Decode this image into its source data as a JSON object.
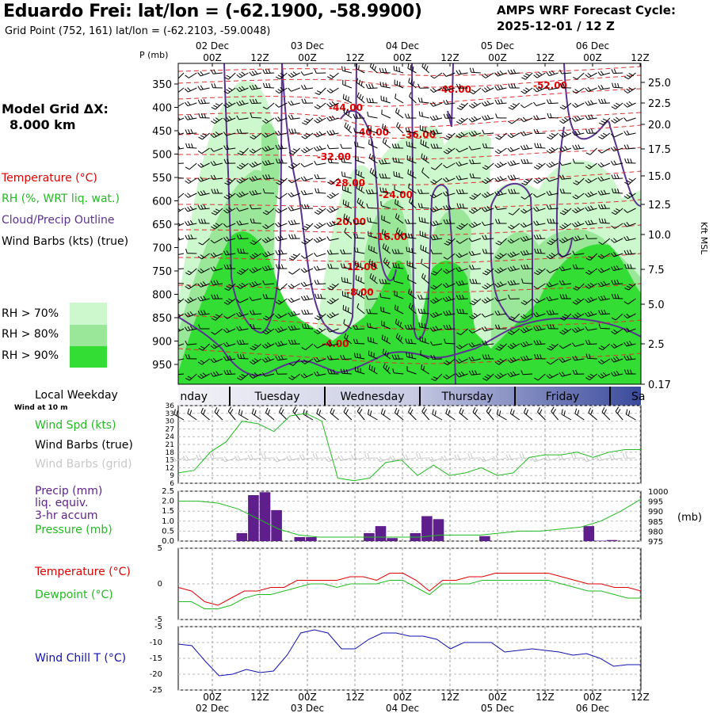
{
  "header": {
    "station_title": "Eduardo Frei:  lat/lon = (-62.1900, -58.9900)",
    "grid_point": "Grid Point (752, 161) lat/lon = (-62.2103, -59.0048)",
    "cycle_line1": "AMPS WRF Forecast Cycle:",
    "cycle_line2": "2025-12-01 / 12  Z"
  },
  "left_panel": {
    "model_grid_title": "Model Grid ΔX:",
    "model_grid_value": "8.000 km",
    "legend_temperature": "Temperature (°C)",
    "legend_rh": "RH (%, WRT liq. wat.)",
    "legend_cloud": "Cloud/Precip Outline",
    "legend_wind": "Wind Barbs (kts) (true)",
    "rh70": "RH > 70%",
    "rh80": "RH > 80%",
    "rh90": "RH > 90%",
    "local_weekday": "Local Weekday",
    "wind_at_10m": "Wind at 10 m",
    "wind_spd": "Wind Spd (kts)",
    "wind_barbs_true": "Wind Barbs (true)",
    "wind_barbs_grid": "Wind Barbs (grid)",
    "precip_1": "Precip (mm)",
    "precip_2": "liq. equiv.",
    "precip_3": "3-hr accum",
    "pressure": "Pressure (mb)",
    "temperature": "Temperature (°C)",
    "dewpoint": "Dewpoint (°C)",
    "wind_chill": "Wind Chill T (°C)"
  },
  "colors": {
    "rh70": "#cdf7cd",
    "rh80": "#9ae79a",
    "rh90": "#33dd33",
    "temp": "#e00000",
    "cloud": "#5b3291",
    "dew": "#22bb22",
    "chill": "#1010b0",
    "precip": "#5e1f8c"
  },
  "chart_data": [
    {
      "type": "heatmap",
      "title": "Time-height cross section",
      "pressure_label": "P (mb)",
      "height_label": "Kft MSL",
      "time_top_labels": [
        "00Z",
        "12Z",
        "00Z",
        "12Z",
        "00Z",
        "12Z",
        "00Z",
        "12Z",
        "00Z",
        "12Z"
      ],
      "date_labels": [
        "02 Dec",
        "03 Dec",
        "04 Dec",
        "05 Dec",
        "06 Dec"
      ],
      "pressure_ticks": [
        "350",
        "400",
        "450",
        "500",
        "550",
        "600",
        "650",
        "700",
        "750",
        "800",
        "850",
        "900",
        "950"
      ],
      "height_ticks": [
        "25.0",
        "22.5",
        "20.0",
        "17.5",
        "15.0",
        "12.5",
        "10.0",
        "7.5",
        "5.0",
        "2.5",
        "0.17"
      ],
      "temp_contour_labels": [
        "-48.00",
        "-52.00",
        "-44.00",
        "-40.00",
        "-36.00",
        "-32.00",
        "-28.00",
        "-24.00",
        "-20.00",
        "-16.00",
        "-12.00",
        "-8.00",
        "-4.00"
      ]
    },
    {
      "type": "table",
      "title": "Local Weekday",
      "days": [
        "nday",
        "Tuesday",
        "Wednesday",
        "Thursday",
        "Friday",
        "Sa"
      ]
    },
    {
      "type": "line",
      "title": "Wind Spd (kts)",
      "y_ticks": [
        "36",
        "33",
        "30",
        "27",
        "24",
        "21",
        "18",
        "15",
        "12",
        "9",
        "6"
      ],
      "ylim": [
        6,
        36
      ],
      "x": [
        0,
        1,
        2,
        3,
        4,
        5,
        6,
        7,
        8,
        9,
        10,
        11,
        12,
        13,
        14,
        15,
        16,
        17,
        18,
        19,
        20,
        21,
        22,
        23,
        24,
        25,
        26,
        27,
        28,
        29
      ],
      "values": [
        10,
        11,
        18,
        22,
        30,
        29,
        26,
        32,
        33,
        30,
        8,
        7,
        8,
        14,
        15,
        9,
        13,
        9,
        10,
        12,
        9,
        10,
        16,
        17,
        17,
        18,
        16,
        18,
        19,
        19
      ]
    },
    {
      "type": "bar",
      "title": "Precip (mm) 3-hr accum",
      "y_ticks": [
        "2.5",
        "2.0",
        "1.5",
        "1.0",
        "0.5",
        "0.0"
      ],
      "ylim": [
        0,
        2.5
      ],
      "values": [
        0,
        0,
        0,
        0,
        0.02,
        0.4,
        2.3,
        2.45,
        1.55,
        0,
        0.2,
        0.2,
        0,
        0,
        0,
        0,
        0.4,
        0.75,
        0.15,
        0,
        0.4,
        1.25,
        1.1,
        0,
        0,
        0,
        0.25,
        0,
        0,
        0,
        0,
        0,
        0,
        0,
        0,
        0.75,
        0.02,
        0.05,
        0,
        0
      ]
    },
    {
      "type": "line",
      "title": "Pressure (mb)",
      "y_ticks": [
        "1000",
        "995",
        "990",
        "985",
        "980",
        "975"
      ],
      "ylim": [
        975,
        1000
      ],
      "values": [
        995,
        995,
        994,
        991,
        986,
        981,
        978,
        977,
        977,
        977,
        977,
        977,
        977,
        978,
        978,
        978,
        979,
        980,
        980,
        981,
        982,
        985,
        990,
        996
      ]
    },
    {
      "type": "line",
      "title": "Temperature / Dewpoint (°C)",
      "y_ticks": [
        "5",
        "0",
        "-5"
      ],
      "ylim": [
        -5,
        5
      ],
      "series": [
        {
          "name": "Temperature (°C)",
          "values": [
            -0.5,
            -1.0,
            -2.5,
            -3.0,
            -2.0,
            -1.0,
            -1.0,
            -0.5,
            -0.5,
            0.5,
            0.5,
            0.5,
            0.5,
            1.0,
            1.0,
            0.5,
            1.5,
            1.5,
            0.5,
            -1.0,
            0.5,
            0.5,
            1.0,
            1.0,
            1.5,
            1.5,
            1.5,
            1.5,
            1.5,
            1.0,
            0.5,
            0.0,
            0.0,
            -0.5,
            -0.5,
            -1.0
          ]
        },
        {
          "name": "Dewpoint (°C)",
          "values": [
            -2.5,
            -2.5,
            -3.5,
            -3.5,
            -3.0,
            -2.0,
            -1.5,
            -1.5,
            -1.0,
            -0.5,
            0.0,
            0.0,
            -0.5,
            0.0,
            0.0,
            0.0,
            0.5,
            0.5,
            -0.5,
            -1.5,
            0.0,
            0.0,
            0.0,
            0.5,
            0.5,
            0.5,
            0.5,
            0.5,
            0.5,
            0.0,
            -0.5,
            -1.0,
            -1.0,
            -1.5,
            -2.0,
            -2.0
          ]
        }
      ]
    },
    {
      "type": "line",
      "title": "Wind Chill T (°C)",
      "y_ticks": [
        "-5",
        "-10",
        "-15",
        "-20",
        "-25"
      ],
      "ylim": [
        -25,
        -5
      ],
      "x_ticks": [
        "00Z",
        "12Z",
        "00Z",
        "12Z",
        "00Z",
        "12Z",
        "00Z",
        "12Z",
        "00Z",
        "12Z"
      ],
      "values": [
        -10.5,
        -11,
        -16,
        -20.5,
        -20,
        -18.5,
        -19.5,
        -19,
        -14,
        -7,
        -6,
        -7,
        -12,
        -12,
        -9,
        -7,
        -7,
        -8,
        -8,
        -9,
        -12,
        -10,
        -10,
        -10,
        -13,
        -12.5,
        -12,
        -12.5,
        -13,
        -14,
        -13.5,
        -15,
        -17.5,
        -17,
        -17
      ]
    }
  ]
}
